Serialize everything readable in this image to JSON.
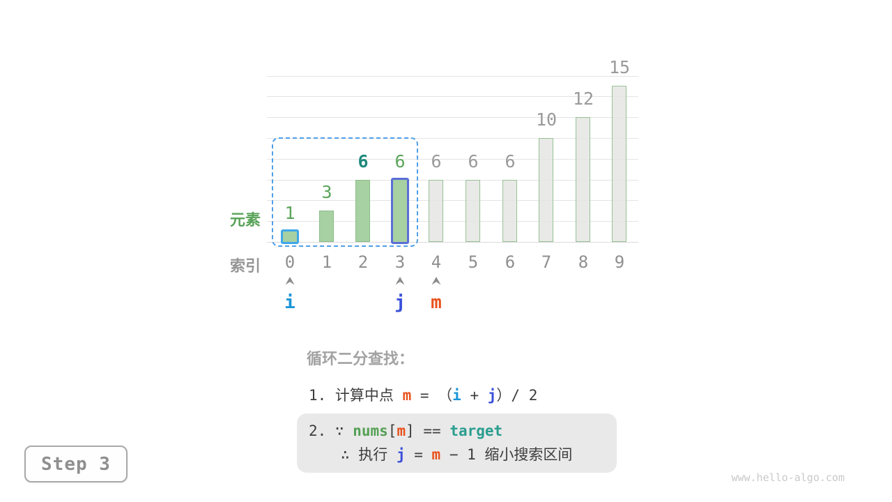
{
  "chart_data": {
    "type": "bar",
    "categories": [
      "0",
      "1",
      "2",
      "3",
      "4",
      "5",
      "6",
      "7",
      "8",
      "9"
    ],
    "values": [
      1,
      3,
      6,
      6,
      6,
      6,
      6,
      10,
      12,
      15
    ],
    "title": "",
    "xlabel": "索引",
    "ylabel": "元素",
    "ylim": [
      0,
      16
    ],
    "gridline_step": 2,
    "grid": true,
    "legend": "none",
    "bar_styles": [
      "green-cyan",
      "green",
      "green",
      "green-indigo",
      "gray",
      "gray",
      "gray",
      "gray",
      "gray",
      "gray"
    ],
    "label_styles": [
      "green",
      "green",
      "teal",
      "green",
      "gray",
      "gray",
      "gray",
      "gray",
      "gray",
      "gray"
    ],
    "search_region": {
      "from_index": 0,
      "to_index": 3
    },
    "pointers": [
      {
        "name": "i",
        "index": 0,
        "style": "blue"
      },
      {
        "name": "j",
        "index": 3,
        "style": "indigo"
      },
      {
        "name": "m",
        "index": 4,
        "style": "orange"
      }
    ]
  },
  "axis": {
    "element_label": "元素",
    "index_label": "索引"
  },
  "explanation": {
    "title": "循环二分查找：",
    "line1": [
      {
        "t": "1. 计算中点 ",
        "s": "plain"
      },
      {
        "t": "m",
        "s": "orange"
      },
      {
        "t": " = （",
        "s": "plain"
      },
      {
        "t": "i",
        "s": "blue"
      },
      {
        "t": " + ",
        "s": "plain"
      },
      {
        "t": "j",
        "s": "indigo"
      },
      {
        "t": "）/ 2",
        "s": "plain"
      }
    ],
    "box_line1": [
      {
        "t": "2. ∵ ",
        "s": "plain"
      },
      {
        "t": "nums",
        "s": "green"
      },
      {
        "t": "[",
        "s": "plain"
      },
      {
        "t": "m",
        "s": "orange"
      },
      {
        "t": "]",
        "s": "plain"
      },
      {
        "t": " == ",
        "s": "plain"
      },
      {
        "t": "target",
        "s": "teal"
      }
    ],
    "box_line2": [
      {
        "t": "∴ 执行 ",
        "s": "plain"
      },
      {
        "t": "j",
        "s": "indigo"
      },
      {
        "t": " = ",
        "s": "plain"
      },
      {
        "t": "m",
        "s": "orange"
      },
      {
        "t": " − 1 缩小搜索区间",
        "s": "plain"
      }
    ]
  },
  "step_badge": {
    "label": "Step 3"
  },
  "watermark": "www.hello-algo.com",
  "colors": {
    "pointer_i_blue": "#1c96d8",
    "pointer_j_indigo": "#3a50d9",
    "pointer_m_orange": "#e8511d",
    "code_nums_green": "#55a055",
    "code_target_teal": "#2a9d8f",
    "bar_green_fill": "#a0cc9b",
    "bar_gray_fill": "#e5e5e3",
    "bar0_border_cyan": "#3fa7ea",
    "bar3_border_indigo": "#5a6ed6",
    "search_region_dash_blue": "#4f9fe8",
    "value_label_green": "#5ba55b",
    "value_label_teal": "#1f897c",
    "muted_gray": "#9a9a9a"
  }
}
